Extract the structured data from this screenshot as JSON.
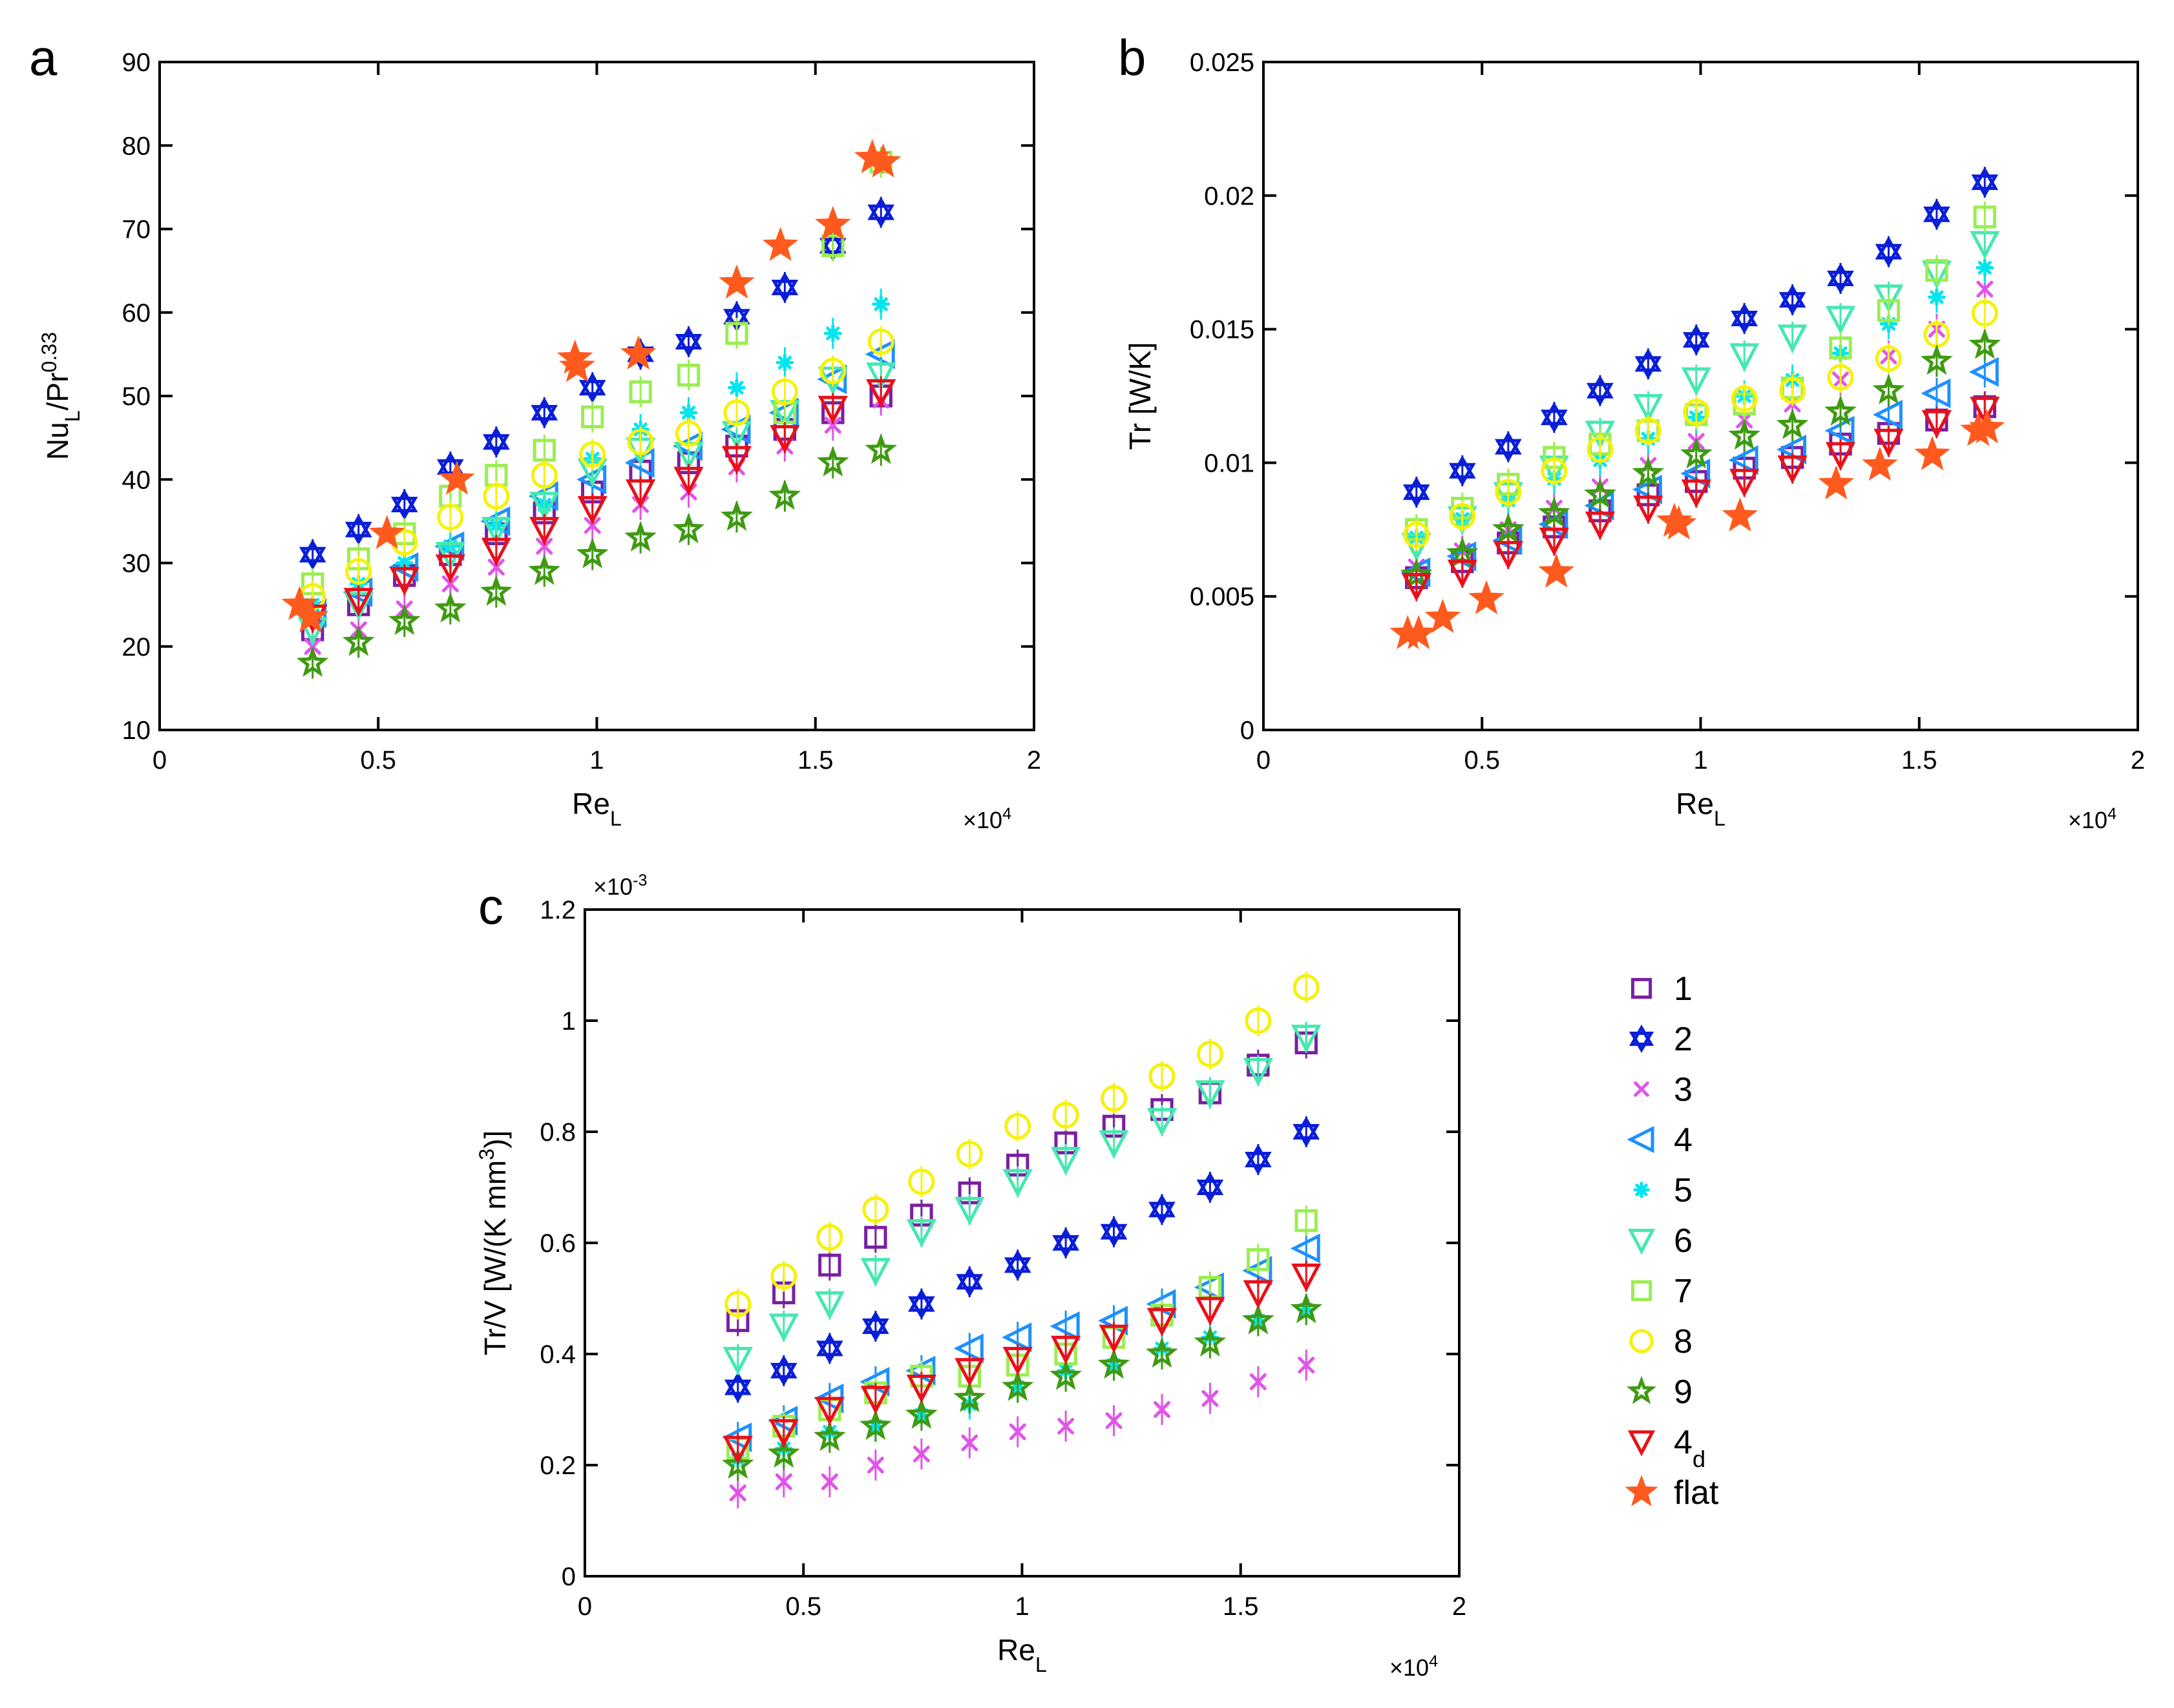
{
  "figure_title": "",
  "chart_data": [
    {
      "panel": "a",
      "type": "scatter",
      "xlabel": "Re",
      "xlabel_sub": "L",
      "ylabel": "Nu",
      "ylabel_sub": "L",
      "ylabel_rest": "/Pr",
      "ylabel_sup": "0.33",
      "x_multiplier": "×10",
      "x_multiplier_exp": "4",
      "xlim": [
        0,
        20000
      ],
      "ylim": [
        10,
        90
      ],
      "xticks": [
        0,
        5000,
        10000,
        15000,
        20000
      ],
      "xtick_labels": [
        "0",
        "0.5",
        "1",
        "1.5",
        "2"
      ],
      "yticks": [
        10,
        20,
        30,
        40,
        50,
        60,
        70,
        80,
        90
      ],
      "ytick_labels": [
        "10",
        "20",
        "30",
        "40",
        "50",
        "60",
        "70",
        "80",
        "90"
      ],
      "x": [
        3500,
        4550,
        5600,
        6650,
        7700,
        8800,
        9900,
        11000,
        12100,
        13200,
        14300,
        15400,
        16500
      ],
      "series": [
        {
          "key": "1",
          "values": [
            22,
            25,
            28.5,
            31,
            33.5,
            36,
            38.5,
            41,
            42,
            44,
            46,
            48,
            50
          ]
        },
        {
          "key": "2",
          "values": [
            31,
            34,
            37,
            41.5,
            44.5,
            48,
            51,
            55,
            56.5,
            59.5,
            63,
            68,
            72
          ]
        },
        {
          "key": "3",
          "values": [
            20,
            22,
            24.5,
            27.5,
            29.5,
            32,
            34.5,
            37,
            38.5,
            41.5,
            44,
            46.5,
            49.5
          ]
        },
        {
          "key": "4",
          "values": [
            24,
            26.5,
            29.5,
            32,
            35,
            38,
            40,
            42,
            44,
            46,
            48,
            52,
            55
          ]
        },
        {
          "key": "5",
          "values": [
            25,
            27.5,
            30,
            32,
            34.5,
            37,
            42.5,
            46,
            48,
            51,
            54,
            57.5,
            61
          ]
        },
        {
          "key": "6",
          "values": [
            22,
            25,
            28,
            31,
            34,
            37,
            41,
            43.5,
            43,
            45.5,
            48,
            52,
            52.5
          ]
        },
        {
          "key": "7",
          "values": [
            27.5,
            30.5,
            33.5,
            38,
            40.5,
            43.5,
            47.5,
            50.5,
            52.5,
            57.5,
            48,
            68,
            78
          ]
        },
        {
          "key": "8",
          "values": [
            26,
            29,
            32.5,
            35.5,
            38,
            40.5,
            43,
            44.5,
            45.5,
            48,
            50.5,
            53,
            56.5
          ]
        },
        {
          "key": "9",
          "values": [
            18,
            20.5,
            23,
            24.5,
            26.5,
            29,
            31,
            33,
            34,
            35.5,
            38,
            42,
            43.5
          ]
        },
        {
          "key": "4d",
          "values": [
            23.5,
            25.5,
            28,
            29.5,
            31.5,
            34,
            36.5,
            38.5,
            40,
            42.5,
            45,
            48.5,
            50.5
          ]
        }
      ],
      "flat": {
        "x": [
          3200,
          3450,
          5200,
          6800,
          9500,
          9550,
          10950,
          13200,
          14200,
          15400,
          16300,
          16550
        ],
        "values": [
          25,
          23.5,
          33.5,
          40,
          54.5,
          53.5,
          55,
          63.5,
          68,
          70.5,
          78.5,
          78
        ]
      }
    },
    {
      "panel": "b",
      "type": "scatter",
      "xlabel": "Re",
      "xlabel_sub": "L",
      "ylabel": "Tr [W/K]",
      "x_multiplier": "×10",
      "x_multiplier_exp": "4",
      "xlim": [
        0,
        20000
      ],
      "ylim": [
        0,
        0.025
      ],
      "xticks": [
        0,
        5000,
        10000,
        15000,
        20000
      ],
      "xtick_labels": [
        "0",
        "0.5",
        "1",
        "1.5",
        "2"
      ],
      "yticks": [
        0,
        0.005,
        0.01,
        0.015,
        0.02,
        0.025
      ],
      "ytick_labels": [
        "0",
        "0.005",
        "0.01",
        "0.015",
        "0.02",
        "0.025"
      ],
      "x": [
        3500,
        4550,
        5600,
        6650,
        7700,
        8800,
        9900,
        11000,
        12100,
        13200,
        14300,
        15400,
        16500
      ],
      "series": [
        {
          "key": "1",
          "values": [
            0.0057,
            0.0063,
            0.007,
            0.0076,
            0.0082,
            0.0088,
            0.0093,
            0.0098,
            0.0102,
            0.0107,
            0.0111,
            0.0116,
            0.0121
          ]
        },
        {
          "key": "2",
          "values": [
            0.0089,
            0.0097,
            0.0106,
            0.0117,
            0.0127,
            0.0137,
            0.0146,
            0.0154,
            0.0161,
            0.0169,
            0.0179,
            0.0193,
            0.0205
          ]
        },
        {
          "key": "3",
          "values": [
            0.0061,
            0.0067,
            0.0075,
            0.0083,
            0.0091,
            0.0099,
            0.0108,
            0.0116,
            0.0122,
            0.0131,
            0.014,
            0.015,
            0.0165
          ]
        },
        {
          "key": "4",
          "values": [
            0.0059,
            0.0065,
            0.0071,
            0.0077,
            0.0084,
            0.009,
            0.0096,
            0.0101,
            0.0105,
            0.0112,
            0.0118,
            0.0126,
            0.0134
          ]
        },
        {
          "key": "5",
          "values": [
            0.0072,
            0.0079,
            0.0086,
            0.0094,
            0.0101,
            0.0109,
            0.0117,
            0.0125,
            0.0131,
            0.0141,
            0.0152,
            0.0162,
            0.0173
          ]
        },
        {
          "key": "6",
          "values": [
            0.0069,
            0.0079,
            0.0088,
            0.0098,
            0.0111,
            0.0121,
            0.0131,
            0.014,
            0.0147,
            0.0154,
            0.0162,
            0.0171,
            0.0182
          ]
        },
        {
          "key": "7",
          "values": [
            0.0075,
            0.0083,
            0.0092,
            0.0102,
            0.0107,
            0.0112,
            0.0118,
            0.0122,
            0.0128,
            0.0143,
            0.0157,
            0.0172,
            0.0192
          ]
        },
        {
          "key": "8",
          "values": [
            0.0073,
            0.008,
            0.0089,
            0.0097,
            0.0105,
            0.0112,
            0.0119,
            0.0124,
            0.0127,
            0.0132,
            0.0139,
            0.0148,
            0.0156
          ]
        },
        {
          "key": "9",
          "values": [
            0.0058,
            0.0066,
            0.0075,
            0.0081,
            0.0088,
            0.0096,
            0.0103,
            0.011,
            0.0114,
            0.0119,
            0.0127,
            0.0138,
            0.0144
          ]
        },
        {
          "key": "4d",
          "values": [
            0.0054,
            0.0059,
            0.0066,
            0.0071,
            0.0077,
            0.0083,
            0.0089,
            0.0093,
            0.0098,
            0.0103,
            0.0108,
            0.0115,
            0.012
          ]
        }
      ],
      "flat": {
        "x": [
          3300,
          3550,
          4100,
          5100,
          6700,
          9400,
          9500,
          10900,
          13100,
          14100,
          15300,
          16350,
          16550
        ],
        "values": [
          0.0036,
          0.0036,
          0.0042,
          0.0049,
          0.0059,
          0.0078,
          0.0077,
          0.008,
          0.0092,
          0.0099,
          0.0103,
          0.0112,
          0.0113
        ]
      }
    },
    {
      "panel": "c",
      "type": "scatter",
      "xlabel": "Re",
      "xlabel_sub": "L",
      "ylabel_pre": "Tr/V [W/(K mm",
      "ylabel_sup": "3",
      "ylabel_post": ")]",
      "x_multiplier": "×10",
      "x_multiplier_exp": "4",
      "y_multiplier": "×10",
      "y_multiplier_exp": "-3",
      "xlim": [
        0,
        20000
      ],
      "ylim": [
        0,
        1.2
      ],
      "xticks": [
        0,
        5000,
        10000,
        15000,
        20000
      ],
      "xtick_labels": [
        "0",
        "0.5",
        "1",
        "1.5",
        "2"
      ],
      "yticks": [
        0,
        0.2,
        0.4,
        0.6,
        0.8,
        1.0,
        1.2
      ],
      "ytick_labels": [
        "0",
        "0.2",
        "0.4",
        "0.6",
        "0.8",
        "1",
        "1.2"
      ],
      "x": [
        3500,
        4550,
        5600,
        6650,
        7700,
        8800,
        9900,
        11000,
        12100,
        13200,
        14300,
        15400,
        16500
      ],
      "series": [
        {
          "key": "1",
          "values": [
            0.46,
            0.51,
            0.56,
            0.61,
            0.65,
            0.69,
            0.74,
            0.78,
            0.81,
            0.84,
            0.87,
            0.92,
            0.96
          ]
        },
        {
          "key": "2",
          "values": [
            0.34,
            0.37,
            0.41,
            0.45,
            0.49,
            0.53,
            0.56,
            0.6,
            0.62,
            0.66,
            0.7,
            0.75,
            0.8
          ]
        },
        {
          "key": "3",
          "values": [
            0.15,
            0.17,
            0.17,
            0.2,
            0.22,
            0.24,
            0.26,
            0.27,
            0.28,
            0.3,
            0.32,
            0.35,
            0.38
          ]
        },
        {
          "key": "4",
          "values": [
            0.25,
            0.28,
            0.32,
            0.35,
            0.37,
            0.41,
            0.43,
            0.45,
            0.46,
            0.49,
            0.52,
            0.55,
            0.59
          ]
        },
        {
          "key": "5",
          "values": [
            0.21,
            0.23,
            0.26,
            0.27,
            0.29,
            0.31,
            0.34,
            0.37,
            0.38,
            0.41,
            0.43,
            0.46,
            0.48
          ]
        },
        {
          "key": "6",
          "values": [
            0.39,
            0.45,
            0.49,
            0.55,
            0.62,
            0.66,
            0.71,
            0.75,
            0.78,
            0.82,
            0.87,
            0.91,
            0.97
          ]
        },
        {
          "key": "7",
          "values": [
            0.23,
            0.27,
            0.3,
            0.33,
            0.36,
            0.36,
            0.38,
            0.4,
            0.43,
            0.47,
            0.52,
            0.57,
            0.64
          ]
        },
        {
          "key": "8",
          "values": [
            0.49,
            0.54,
            0.61,
            0.66,
            0.71,
            0.76,
            0.81,
            0.83,
            0.86,
            0.9,
            0.94,
            1.0,
            1.06
          ]
        },
        {
          "key": "9",
          "values": [
            0.2,
            0.22,
            0.25,
            0.27,
            0.29,
            0.32,
            0.34,
            0.36,
            0.38,
            0.4,
            0.42,
            0.46,
            0.48
          ]
        },
        {
          "key": "4d",
          "values": [
            0.23,
            0.26,
            0.3,
            0.32,
            0.34,
            0.37,
            0.39,
            0.41,
            0.43,
            0.46,
            0.48,
            0.51,
            0.54
          ]
        }
      ]
    }
  ],
  "legend": {
    "placement": "right of panel c",
    "items": [
      {
        "key": "1",
        "label": "1",
        "label_sub": "",
        "marker": "square",
        "color": "#7a1fa2"
      },
      {
        "key": "2",
        "label": "2",
        "label_sub": "",
        "marker": "hexagram",
        "color": "#0a1ed8"
      },
      {
        "key": "3",
        "label": "3",
        "label_sub": "",
        "marker": "x",
        "color": "#e055e8"
      },
      {
        "key": "4",
        "label": "4",
        "label_sub": "",
        "marker": "triangle-left",
        "color": "#1e90ff"
      },
      {
        "key": "5",
        "label": "5",
        "label_sub": "",
        "marker": "asterisk",
        "color": "#00e5ee"
      },
      {
        "key": "6",
        "label": "6",
        "label_sub": "",
        "marker": "triangle-down",
        "color": "#45e8b0"
      },
      {
        "key": "7",
        "label": "7",
        "label_sub": "",
        "marker": "square",
        "color": "#9aee50"
      },
      {
        "key": "8",
        "label": "8",
        "label_sub": "",
        "marker": "circle",
        "color": "#f5f20c"
      },
      {
        "key": "9",
        "label": "9",
        "label_sub": "",
        "marker": "star-open",
        "color": "#3f9a12"
      },
      {
        "key": "4d",
        "label": "4",
        "label_sub": "d",
        "marker": "triangle-down",
        "color": "#e8101a"
      },
      {
        "key": "flat",
        "label": "flat",
        "label_sub": "",
        "marker": "star-filled",
        "color": "#ff5a1e"
      }
    ]
  }
}
